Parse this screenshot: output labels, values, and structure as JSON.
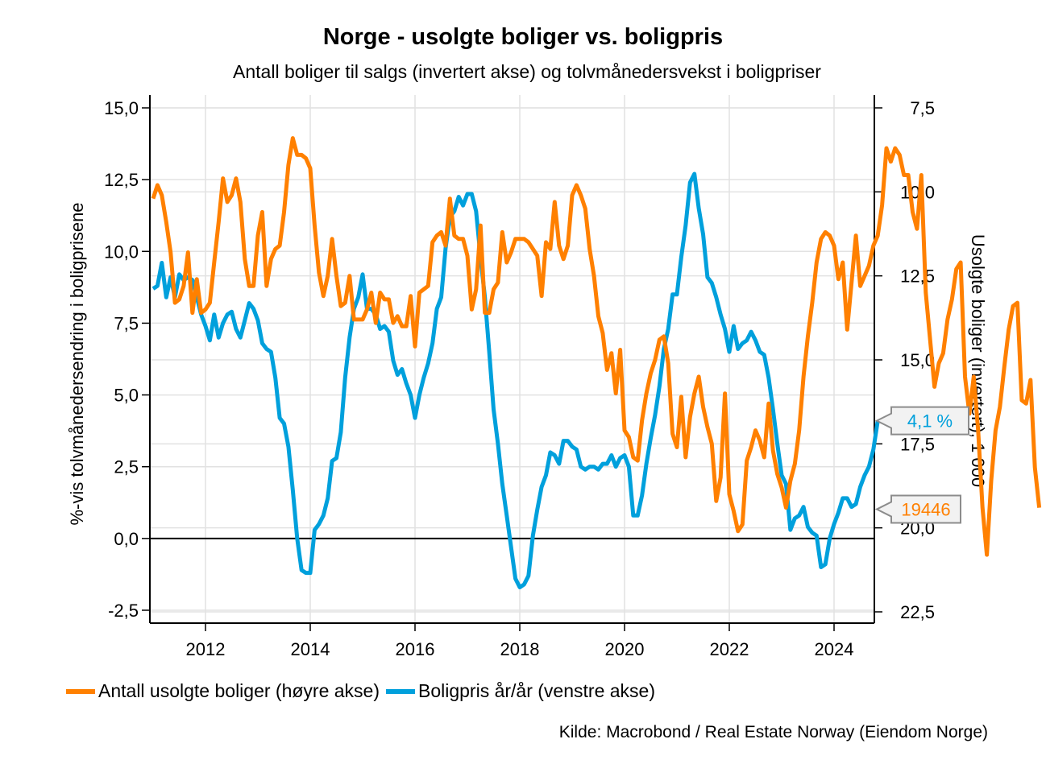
{
  "chart_data": {
    "type": "line",
    "title": "Norge - usolgte boliger vs. boligpris",
    "subtitle": "Antall boliger til salgs (invertert akse) og tolvmånedersvekst i boligpriser",
    "xlabel": "",
    "ylabel_left": "%-vis tolvmånedersendring i boligprisene",
    "ylabel_right": "Usolgte boliger (invertert), 1 000",
    "x_range": [
      2011.0,
      2024.8
    ],
    "x_ticks": [
      2012,
      2014,
      2016,
      2018,
      2020,
      2022,
      2024
    ],
    "x_tick_labels": [
      "2012",
      "2014",
      "2016",
      "2018",
      "2020",
      "2022",
      "2024"
    ],
    "ylim_left": [
      -3.0,
      15.3
    ],
    "yticks_left": [
      "15,0",
      "12,5",
      "10,0",
      "7,5",
      "5,0",
      "2,5",
      "0,0",
      "-2,5"
    ],
    "yticks_left_values": [
      15.0,
      12.5,
      10.0,
      7.5,
      5.0,
      2.5,
      0.0,
      -2.5
    ],
    "ylim_right": [
      7.3,
      22.9
    ],
    "right_axis_inverted": true,
    "yticks_right": [
      "7,5",
      "10,0",
      "12,5",
      "15,0",
      "17,5",
      "20,0",
      "22,5"
    ],
    "yticks_right_values": [
      7.5,
      10.0,
      12.5,
      15.0,
      17.5,
      20.0,
      22.5
    ],
    "grid": true,
    "zero_line": true,
    "legend_position": "bottom",
    "series": [
      {
        "name": "Antall usolgte boliger (høyre akse)",
        "axis": "right",
        "color": "#ff8000",
        "start": 2011.0,
        "step_months": 1,
        "values": [
          10.2,
          9.8,
          10.1,
          10.9,
          11.8,
          13.3,
          13.2,
          12.8,
          11.8,
          13.6,
          12.6,
          13.6,
          13.5,
          13.3,
          12.1,
          10.9,
          9.6,
          10.3,
          10.1,
          9.6,
          10.3,
          12.0,
          12.8,
          12.8,
          11.3,
          10.6,
          12.8,
          12.0,
          11.7,
          11.6,
          10.6,
          9.2,
          8.4,
          8.9,
          8.9,
          9.0,
          9.3,
          11.0,
          12.4,
          13.1,
          12.5,
          11.4,
          12.5,
          13.4,
          13.3,
          12.5,
          13.8,
          13.8,
          13.8,
          13.5,
          13.0,
          13.9,
          13.0,
          13.2,
          13.2,
          13.9,
          13.7,
          14.0,
          14.0,
          13.1,
          14.6,
          13.0,
          12.9,
          12.8,
          11.5,
          11.3,
          11.2,
          11.6,
          10.2,
          11.3,
          11.4,
          11.4,
          11.9,
          13.5,
          12.9,
          11.0,
          13.6,
          13.6,
          12.9,
          12.7,
          11.2,
          12.1,
          11.8,
          11.4,
          11.4,
          11.4,
          11.5,
          11.7,
          11.9,
          13.1,
          11.5,
          11.7,
          10.3,
          11.6,
          12.0,
          11.6,
          10.1,
          9.8,
          10.1,
          10.5,
          11.7,
          12.5,
          13.7,
          14.2,
          15.3,
          14.8,
          16.0,
          14.7,
          17.1,
          17.3,
          17.9,
          18.0,
          16.8,
          16.0,
          15.4,
          15.0,
          14.4,
          14.3,
          15.1,
          17.2,
          17.6,
          16.1,
          17.9,
          16.7,
          16.0,
          15.5,
          16.4,
          17.0,
          17.5,
          19.2,
          18.5,
          16.0,
          19.0,
          19.5,
          20.1,
          19.9,
          18.0,
          17.6,
          17.1,
          17.4,
          17.9,
          16.3,
          17.7,
          18.4,
          18.8,
          19.4,
          18.6,
          18.1,
          17.1,
          15.5,
          14.3,
          13.3,
          12.1,
          11.4,
          11.2,
          11.3,
          11.6,
          12.6,
          12.1,
          14.1,
          12.7,
          11.3,
          12.8,
          12.5,
          12.2,
          11.6,
          11.3,
          10.4,
          8.7,
          9.1,
          8.7,
          8.9,
          9.5,
          9.5,
          10.6,
          11.1,
          9.5,
          13.0,
          14.4,
          15.8,
          15.1,
          14.8,
          13.8,
          13.2,
          12.3,
          12.1,
          15.5,
          16.6,
          15.5,
          17.1,
          19.4,
          20.8,
          18.6,
          17.1,
          16.4,
          15.2,
          14.1,
          13.4,
          13.3,
          16.2,
          16.3,
          15.6,
          18.2,
          19.4
        ]
      },
      {
        "name": "Boligpris år/år (venstre akse)",
        "axis": "left",
        "color": "#00a0dc",
        "start": 2011.0,
        "step_months": 1,
        "values": [
          8.7,
          8.8,
          9.6,
          8.4,
          9.1,
          8.4,
          9.2,
          9.0,
          9.1,
          9.0,
          8.4,
          7.8,
          7.4,
          6.9,
          7.8,
          7.0,
          7.5,
          7.8,
          7.9,
          7.3,
          7.0,
          7.6,
          8.2,
          8.0,
          7.6,
          6.8,
          6.6,
          6.5,
          5.6,
          4.2,
          4.0,
          3.2,
          1.7,
          0.0,
          -1.1,
          -1.2,
          -1.2,
          0.3,
          0.5,
          0.8,
          1.4,
          2.7,
          2.8,
          3.7,
          5.6,
          7.0,
          8.0,
          8.4,
          9.2,
          8.0,
          8.0,
          7.8,
          7.3,
          7.4,
          7.2,
          6.2,
          5.7,
          5.9,
          5.4,
          5.0,
          4.2,
          5.0,
          5.6,
          6.1,
          6.8,
          8.0,
          8.4,
          10.1,
          11.2,
          11.4,
          11.9,
          11.6,
          12.0,
          12.0,
          11.4,
          9.8,
          8.4,
          6.5,
          4.5,
          3.3,
          1.9,
          0.8,
          -0.3,
          -1.4,
          -1.7,
          -1.6,
          -1.3,
          0.1,
          1.0,
          1.8,
          2.2,
          3.0,
          2.9,
          2.6,
          3.4,
          3.4,
          3.2,
          3.1,
          2.5,
          2.4,
          2.5,
          2.5,
          2.4,
          2.6,
          2.6,
          2.9,
          2.5,
          2.8,
          2.9,
          2.5,
          0.8,
          0.8,
          1.5,
          2.6,
          3.5,
          4.3,
          5.3,
          6.6,
          7.3,
          8.5,
          8.5,
          9.8,
          10.9,
          12.4,
          12.7,
          11.5,
          10.6,
          9.1,
          8.9,
          8.4,
          7.8,
          7.3,
          6.5,
          7.4,
          6.6,
          6.8,
          6.9,
          7.2,
          6.9,
          6.5,
          6.4,
          5.6,
          4.5,
          3.3,
          2.2,
          1.9,
          0.3,
          0.7,
          0.8,
          1.1,
          0.4,
          0.2,
          0.1,
          -1.0,
          -0.9,
          0.0,
          0.5,
          0.9,
          1.4,
          1.4,
          1.1,
          1.2,
          1.8,
          2.2,
          2.5,
          3.1,
          4.1
        ]
      }
    ],
    "callouts": [
      {
        "series": "Boligpris år/år (venstre akse)",
        "text": "4,1 %",
        "value": 4.1
      },
      {
        "series": "Antall usolgte boliger (høyre akse)",
        "text": "19446",
        "value": 19.446
      }
    ],
    "source": "Kilde: Macrobond / Real Estate Norway (Eiendom Norge)"
  }
}
